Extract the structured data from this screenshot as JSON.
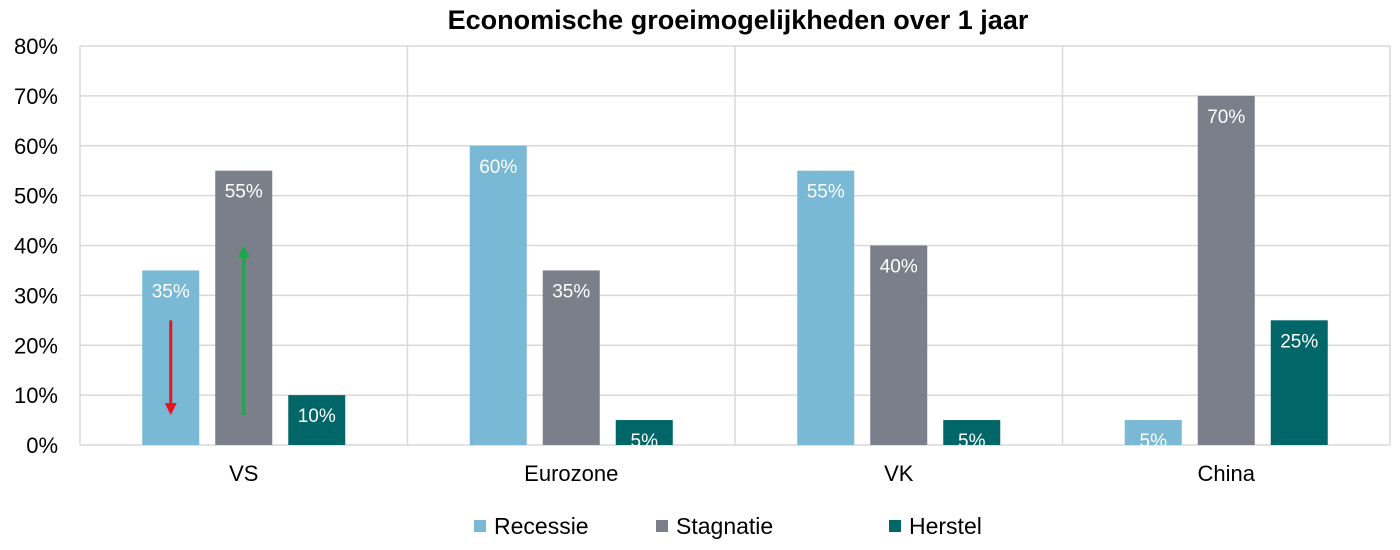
{
  "chart_data": {
    "type": "bar",
    "title": "Economische groeimogelijkheden over 1 jaar",
    "xlabel": "",
    "ylabel": "",
    "categories": [
      "VS",
      "Eurozone",
      "VK",
      "China"
    ],
    "series": [
      {
        "name": "Recessie",
        "values": [
          35,
          60,
          55,
          5
        ],
        "color": "#7ab9d6"
      },
      {
        "name": "Stagnatie",
        "values": [
          55,
          35,
          40,
          70
        ],
        "color": "#7b7f8a"
      },
      {
        "name": "Herstel",
        "values": [
          10,
          5,
          5,
          25
        ],
        "color": "#006667"
      }
    ],
    "value_labels": [
      [
        "35%",
        "60%",
        "55%",
        "5%"
      ],
      [
        "55%",
        "35%",
        "40%",
        "70%"
      ],
      [
        "10%",
        "5%",
        "5%",
        "25%"
      ]
    ],
    "yticks": [
      "0%",
      "10%",
      "20%",
      "30%",
      "40%",
      "50%",
      "60%",
      "70%",
      "80%"
    ],
    "ylim": [
      0,
      80
    ],
    "grid": true,
    "legend_position": "bottom",
    "annotations": [
      {
        "type": "arrow",
        "direction": "down",
        "category": "VS",
        "series": "Recessie",
        "from": 25,
        "to": 6,
        "color": "#e8141b"
      },
      {
        "type": "arrow",
        "direction": "up",
        "category": "VS",
        "series": "Stagnatie",
        "from": 6,
        "to": 40,
        "color": "#1aa84a"
      }
    ]
  }
}
